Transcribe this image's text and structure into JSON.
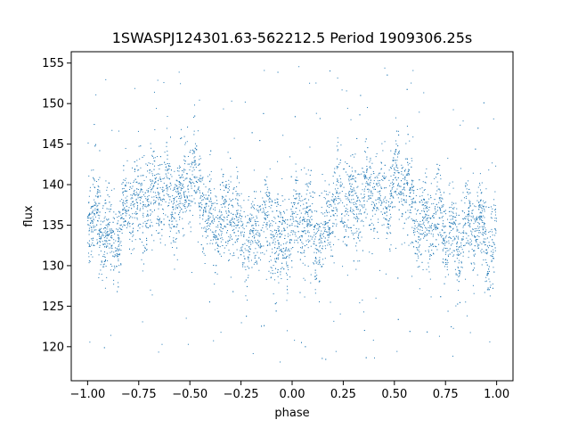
{
  "chart_data": {
    "type": "scatter",
    "title": "1SWASPJ124301.63-562212.5 Period 1909306.25s",
    "xlabel": "phase",
    "ylabel": "flux",
    "xlim": [
      -1.08,
      1.08
    ],
    "ylim": [
      115.8,
      156.4
    ],
    "xticks": [
      -1.0,
      -0.75,
      -0.5,
      -0.25,
      0.0,
      0.25,
      0.5,
      0.75,
      1.0
    ],
    "xtick_labels": [
      "−1.00",
      "−0.75",
      "−0.50",
      "−0.25",
      "0.00",
      "0.25",
      "0.50",
      "0.75",
      "1.00"
    ],
    "yticks": [
      120,
      125,
      130,
      135,
      140,
      145,
      150,
      155
    ],
    "ytick_labels": [
      "120",
      "125",
      "130",
      "135",
      "140",
      "145",
      "150",
      "155"
    ],
    "grid": false,
    "marker_color": "#1f77b4",
    "profile": {
      "phase": [
        0.0,
        0.05,
        0.1,
        0.15,
        0.2,
        0.25,
        0.3,
        0.35,
        0.4,
        0.45,
        0.5,
        0.55,
        0.6,
        0.65,
        0.7,
        0.75,
        0.8,
        0.85,
        0.9,
        0.95,
        1.0
      ],
      "flux": [
        134.5,
        135.0,
        134.5,
        134.0,
        136.5,
        138.0,
        139.0,
        138.5,
        138.0,
        139.0,
        140.5,
        138.5,
        136.0,
        136.0,
        135.0,
        134.0,
        134.0,
        134.5,
        134.0,
        134.0,
        134.5
      ],
      "scatter_sd": 3.2,
      "outlier_range": [
        118,
        155
      ]
    }
  }
}
